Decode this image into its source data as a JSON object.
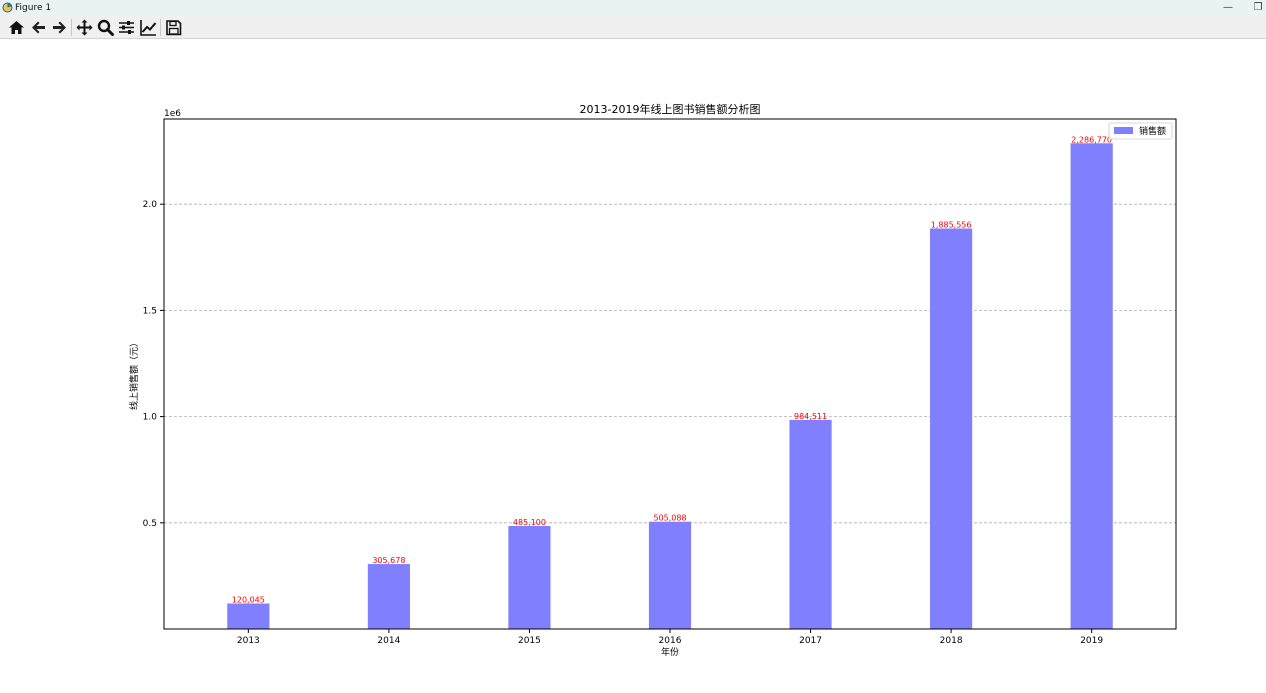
{
  "window": {
    "title": "Figure 1",
    "minimize_glyph": "—",
    "restore_glyph": "❐"
  },
  "toolbar": {
    "buttons": [
      {
        "name": "home",
        "icon": "home-icon"
      },
      {
        "name": "back",
        "icon": "arrow-left-icon"
      },
      {
        "name": "forward",
        "icon": "arrow-right-icon"
      },
      {
        "name": "pan",
        "icon": "move-icon"
      },
      {
        "name": "zoom",
        "icon": "magnifier-icon"
      },
      {
        "name": "configure-subplots",
        "icon": "sliders-icon"
      },
      {
        "name": "edit-axes",
        "icon": "line-chart-icon"
      },
      {
        "name": "save",
        "icon": "floppy-disk-icon"
      }
    ]
  },
  "chart_data": {
    "type": "bar",
    "title": "2013-2019年线上图书销售额分析图",
    "xlabel": "年份",
    "ylabel": "线上销售额（元）",
    "offset_label": "1e6",
    "categories": [
      "2013",
      "2014",
      "2015",
      "2016",
      "2017",
      "2018",
      "2019"
    ],
    "series": [
      {
        "name": "销售额",
        "values": [
          120045,
          305678,
          485100,
          505088,
          984511,
          1885556,
          2286770
        ],
        "labels": [
          "120,045",
          "305,678",
          "485,100",
          "505,088",
          "984,511",
          "1,885,556",
          "2,286,770"
        ]
      }
    ],
    "ylim": [
      0,
      2401108
    ],
    "yticks": [
      0.5,
      1.0,
      1.5,
      2.0
    ],
    "ytick_labels": [
      "0.5",
      "1.0",
      "1.5",
      "2.0"
    ],
    "grid": "y-dashed",
    "legend": "top-right",
    "colors": {
      "bar": "#8080ff",
      "value_label": "#ff0000",
      "grid": "#b0b0b0"
    }
  }
}
